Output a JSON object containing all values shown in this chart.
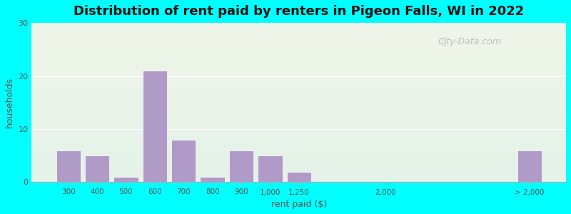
{
  "title": "Distribution of rent paid by renters in Pigeon Falls, WI in 2022",
  "xlabel": "rent paid ($)",
  "ylabel": "households",
  "bar_labels": [
    "300",
    "400",
    "500",
    "600",
    "700",
    "800",
    "900",
    "1,000",
    "1,250",
    "2,000",
    "> 2,000"
  ],
  "bar_values": [
    6,
    5,
    1,
    21,
    8,
    1,
    6,
    5,
    2,
    0,
    6
  ],
  "bar_color": "#b09ac8",
  "bg_color_top": "#f0f5e8",
  "bg_color_bottom": "#e8f5f0",
  "ylim": [
    0,
    30
  ],
  "yticks": [
    0,
    10,
    20,
    30
  ],
  "outer_bg": "#00ffff",
  "title_fontsize": 13,
  "axis_label_fontsize": 9,
  "watermark": "City-Data.com"
}
